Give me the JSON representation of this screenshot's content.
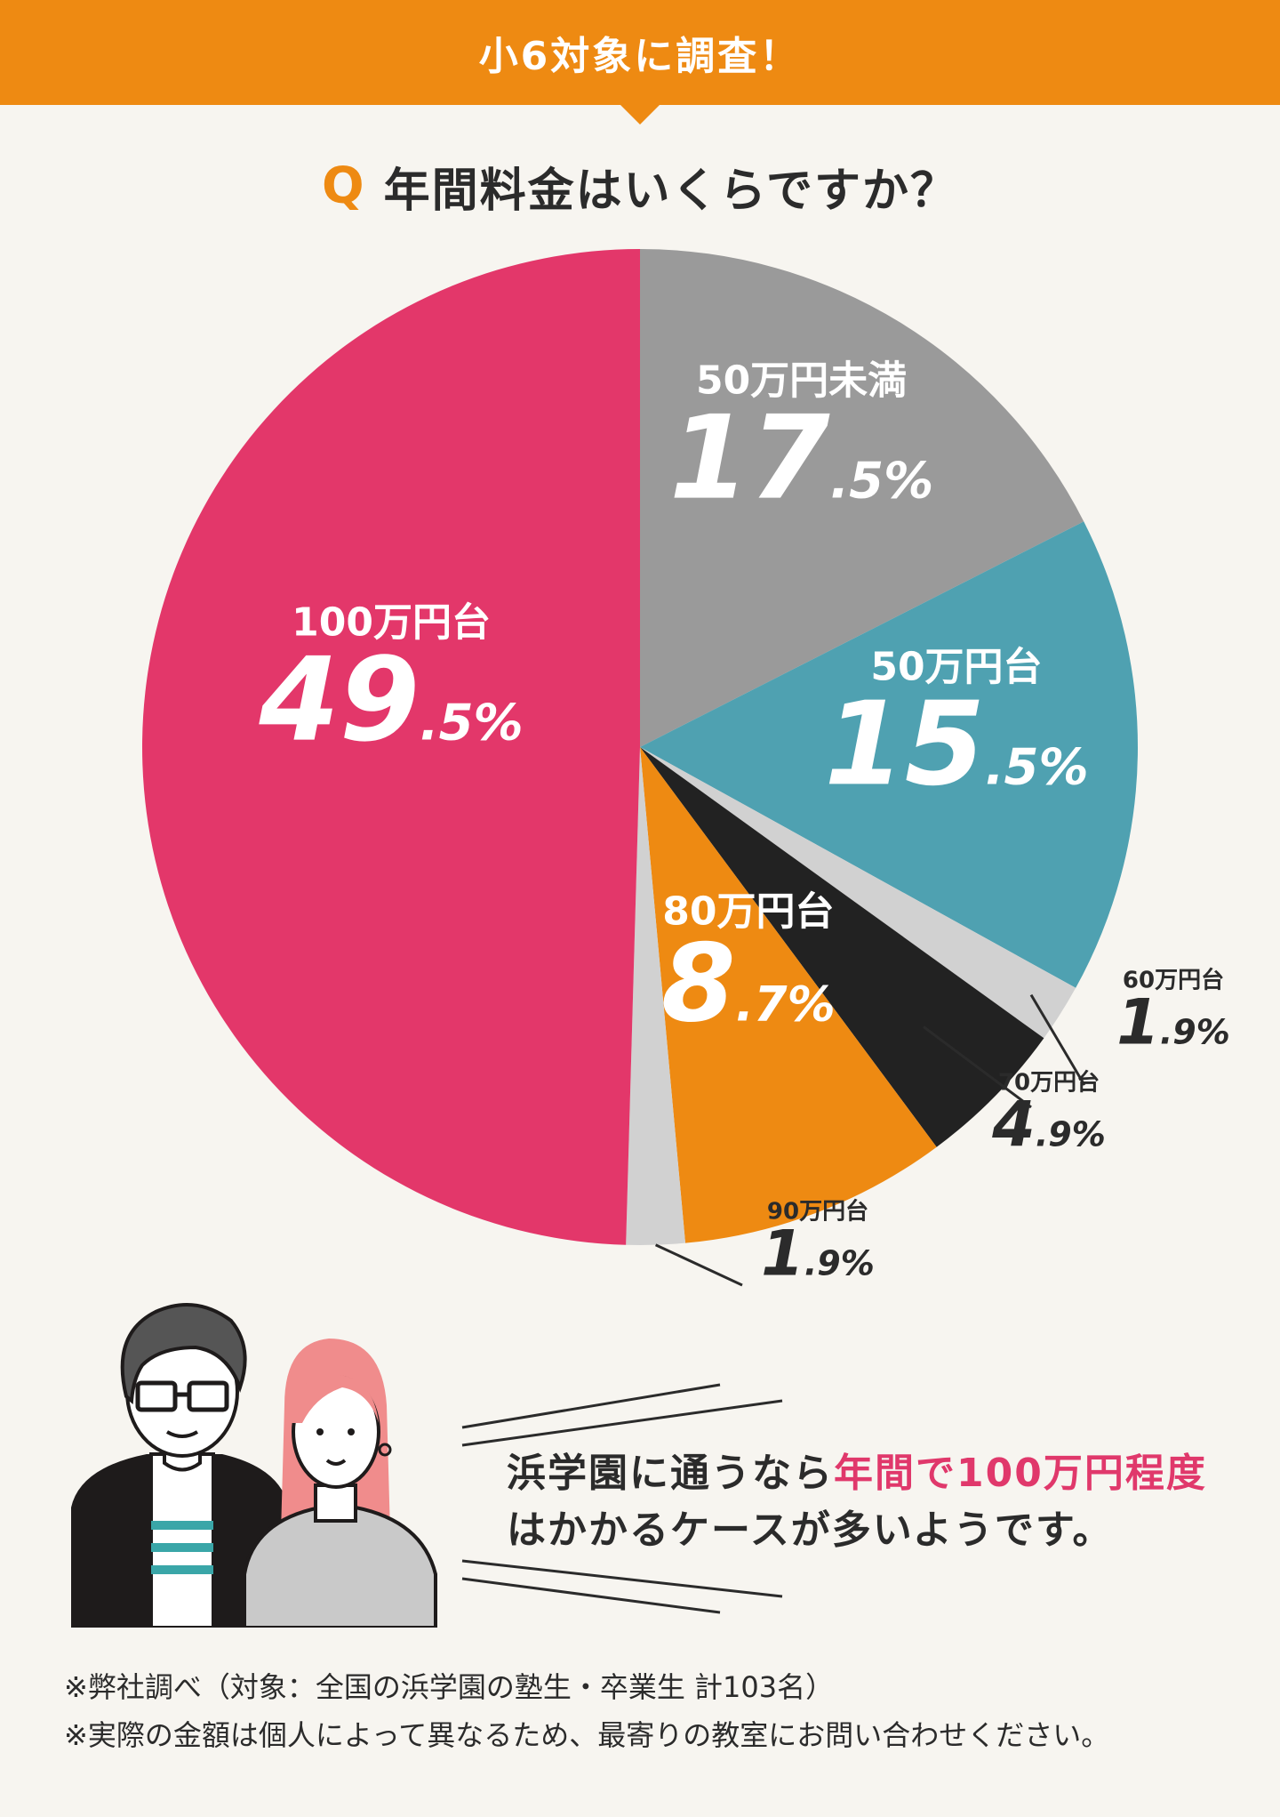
{
  "banner": {
    "text": "小6対象に調査！"
  },
  "question": {
    "mark": "Q",
    "text": "年間料金はいくらですか？"
  },
  "chart_data": {
    "type": "pie",
    "title": "",
    "start": "12 o'clock, clockwise",
    "slices": [
      {
        "label": "50万円未満",
        "value": 17.5,
        "int": "17",
        "dec": ".5%",
        "color": "#9a9a9a"
      },
      {
        "label": "50万円台",
        "value": 15.5,
        "int": "15",
        "dec": ".5%",
        "color": "#4fa1b1"
      },
      {
        "label": "60万円台",
        "value": 1.9,
        "int": "1",
        "dec": ".9%",
        "color": "#d1d1d1"
      },
      {
        "label": "70万円台",
        "value": 4.9,
        "int": "4",
        "dec": ".9%",
        "color": "#222222"
      },
      {
        "label": "80万円台",
        "value": 8.7,
        "int": "8",
        "dec": ".7%",
        "color": "#ee8a12"
      },
      {
        "label": "90万円台",
        "value": 1.9,
        "int": "1",
        "dec": ".9%",
        "color": "#d1d1d1"
      },
      {
        "label": "100万円台",
        "value": 49.5,
        "int": "49",
        "dec": ".5%",
        "color": "#e3376a"
      }
    ]
  },
  "message": {
    "line1_a": "浜学園に通うなら",
    "line1_b": "年間で100万円程度",
    "line2": "はかかるケースが多いようです。"
  },
  "notes": [
    "※弊社調べ（対象：全国の浜学園の塾生・卒業生 計103名）",
    "※実際の金額は個人によって異なるため、最寄りの教室にお問い合わせください。"
  ],
  "colors": {
    "accent": "#ee8a12",
    "highlight": "#e0386b",
    "background": "#f7f5f0"
  }
}
